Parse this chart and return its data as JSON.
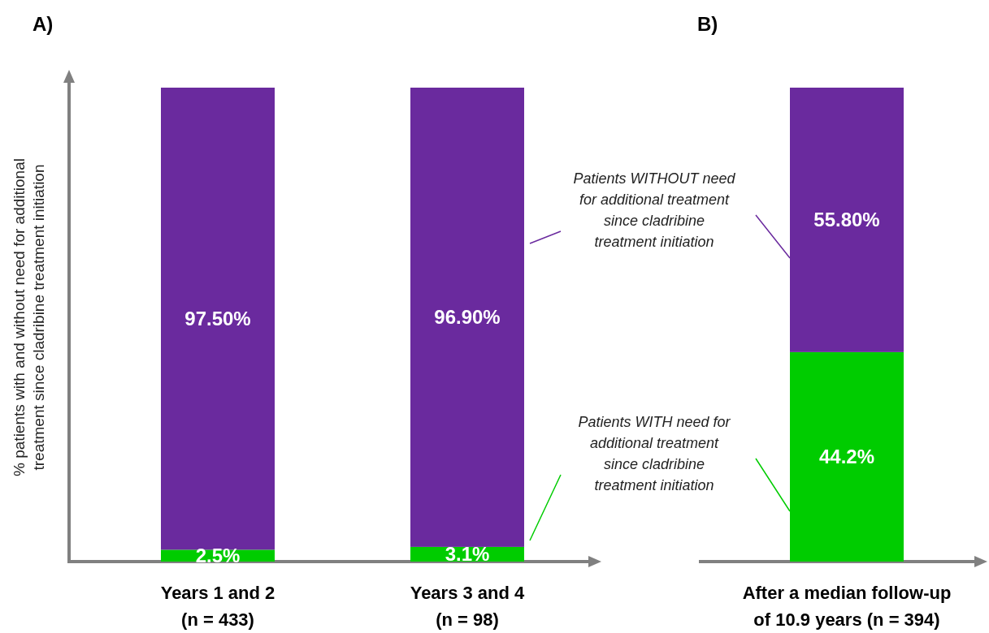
{
  "chart_data": [
    {
      "type": "bar",
      "title": "A)",
      "ylabel": "% patients with and without need for additional\ntreatment since cladribine treatment initiation",
      "categories": [
        "Years 1 and 2\n(n = 433)",
        "Years 3 and 4\n(n = 98)"
      ],
      "stacked": true,
      "series": [
        {
          "color": "#00cc00",
          "values": [
            2.5,
            3.1
          ],
          "value_labels": [
            "2.5%",
            "3.1%"
          ]
        },
        {
          "color": "#6a2a9e",
          "values": [
            97.5,
            96.9
          ],
          "value_labels": [
            "97.50%",
            "96.90%"
          ]
        }
      ]
    },
    {
      "type": "bar",
      "title": "B)",
      "categories": [
        "After a median follow-up\nof 10.9 years (n = 394)"
      ],
      "stacked": true,
      "series": [
        {
          "color": "#00cc00",
          "values": [
            44.2
          ],
          "value_labels": [
            "44.2%"
          ]
        },
        {
          "color": "#6a2a9e",
          "values": [
            55.8
          ],
          "value_labels": [
            "55.80%"
          ]
        }
      ],
      "annotations": [
        "Patients WITHOUT need for additional treatment since cladribine treatment initiation",
        "Patients WITH need for additional treatment since cladribine treatment initiation"
      ]
    }
  ]
}
